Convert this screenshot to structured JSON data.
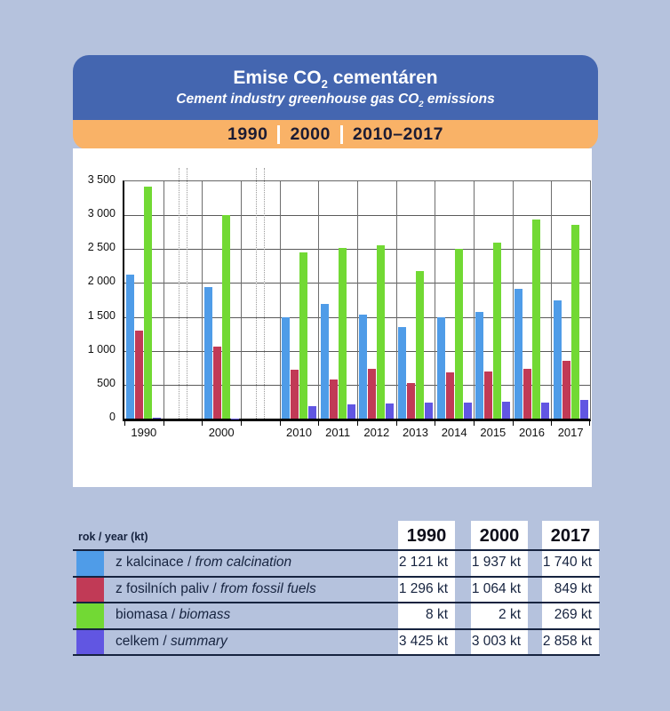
{
  "header": {
    "title": {
      "prefix": "Emise CO",
      "sub": "2",
      "suffix": " cementáren"
    },
    "subtitle": {
      "prefix": "Cement industry greenhouse gas CO",
      "sub": "2",
      "suffix": " emissions"
    },
    "periods": [
      "1990",
      "2000",
      "2010–2017"
    ]
  },
  "colors": {
    "background": "#b5c2dd",
    "header_blue": "#4466b0",
    "band_orange": "#f9b267",
    "text_navy": "#16233f",
    "bar_blue": "#4f9ce8",
    "bar_red": "#c13a56",
    "bar_green": "#72d934",
    "bar_purple": "#6156e2"
  },
  "chart_data": {
    "type": "bar",
    "title": "Emise CO2 cementáren / Cement industry greenhouse gas CO2 emissions",
    "xlabel": "",
    "ylabel": "",
    "unit": "kt",
    "ylim": [
      0,
      3500
    ],
    "ytick_step": 500,
    "grid": true,
    "legend_position": "table-below",
    "axis_break_after": [
      "1990",
      "2000"
    ],
    "series_order": [
      "calcination",
      "fossil_fuels",
      "total",
      "biomass"
    ],
    "series_labels": {
      "calcination": "z kalcinace / from calcination",
      "fossil_fuels": "z fosilních paliv / from fossil fuels",
      "total": "celkem / summary",
      "biomass": "biomasa / biomass"
    },
    "series_colors": {
      "calcination": "#4f9ce8",
      "fossil_fuels": "#c13a56",
      "total": "#72d934",
      "biomass": "#6156e2"
    },
    "groups": [
      {
        "year": "1990",
        "calcination": 2121,
        "fossil_fuels": 1296,
        "total": 3425,
        "biomass": 8
      },
      {
        "year": "2000",
        "calcination": 1937,
        "fossil_fuels": 1064,
        "total": 3003,
        "biomass": 2
      },
      {
        "year": "2010",
        "calcination": 1490,
        "fossil_fuels": 720,
        "total": 2450,
        "biomass": 185
      },
      {
        "year": "2011",
        "calcination": 1690,
        "fossil_fuels": 580,
        "total": 2520,
        "biomass": 205
      },
      {
        "year": "2012",
        "calcination": 1540,
        "fossil_fuels": 740,
        "total": 2560,
        "biomass": 220
      },
      {
        "year": "2013",
        "calcination": 1350,
        "fossil_fuels": 530,
        "total": 2180,
        "biomass": 230
      },
      {
        "year": "2014",
        "calcination": 1490,
        "fossil_fuels": 680,
        "total": 2500,
        "biomass": 240
      },
      {
        "year": "2015",
        "calcination": 1570,
        "fossil_fuels": 700,
        "total": 2600,
        "biomass": 250
      },
      {
        "year": "2016",
        "calcination": 1920,
        "fossil_fuels": 730,
        "total": 2930,
        "biomass": 230
      },
      {
        "year": "2017",
        "calcination": 1740,
        "fossil_fuels": 849,
        "total": 2858,
        "biomass": 269
      }
    ]
  },
  "table": {
    "header": {
      "row_label": "rok / year (kt)",
      "columns": [
        "1990",
        "2000",
        "2017"
      ]
    },
    "separator": "/",
    "rows": [
      {
        "cs": "z kalcinace",
        "en": "from calcination",
        "color": "#4f9ce8",
        "values": [
          "2 121 kt",
          "1 937 kt",
          "1 740 kt"
        ]
      },
      {
        "cs": "z fosilních paliv",
        "en": "from fossil fuels",
        "color": "#c13a56",
        "values": [
          "1 296 kt",
          "1 064 kt",
          "849 kt"
        ]
      },
      {
        "cs": "biomasa",
        "en": "biomass",
        "color": "#72d934",
        "values": [
          "8 kt",
          "2 kt",
          "269 kt"
        ]
      },
      {
        "cs": "celkem",
        "en": "summary",
        "color": "#6156e2",
        "values": [
          "3 425 kt",
          "3 003 kt",
          "2 858 kt"
        ]
      }
    ]
  }
}
